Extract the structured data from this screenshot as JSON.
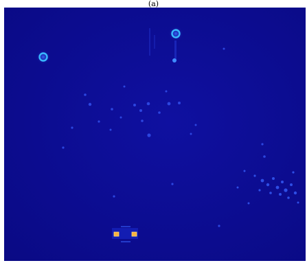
{
  "figure": {
    "panel_label": "(a)"
  },
  "image": {
    "description_colormap": "jet",
    "background_color": "#0d0c8f",
    "dim_spot_color": "#2e4ee6",
    "ring_color": "#39b8ff",
    "hot_marker_color": "#ffb13b"
  }
}
